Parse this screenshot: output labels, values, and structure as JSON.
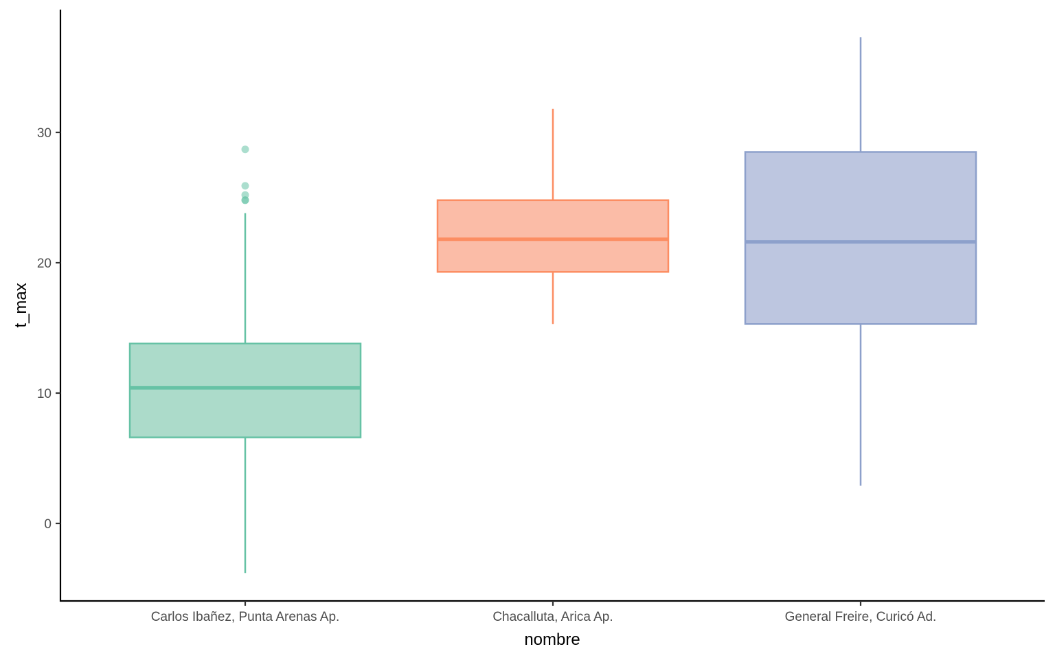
{
  "chart_data": {
    "type": "boxplot",
    "title": "",
    "xlabel": "nombre",
    "ylabel": "t_max",
    "ylim": [
      -5.9,
      39.2
    ],
    "yticks": [
      0,
      10,
      20,
      30
    ],
    "grid": false,
    "legend": "none",
    "categories": [
      "Carlos Ibañez, Punta Arenas Ap.",
      "Chacalluta, Arica Ap.",
      "General Freire, Curicó Ad."
    ],
    "series": [
      {
        "name": "Carlos Ibañez, Punta Arenas Ap.",
        "color": "#66c2a5",
        "fill": "#acdbca",
        "whisker_low": -3.8,
        "q1": 6.6,
        "median": 10.4,
        "q3": 13.8,
        "whisker_high": 23.8,
        "outliers": [
          24.8,
          24.8,
          25.2,
          25.9,
          28.7
        ]
      },
      {
        "name": "Chacalluta, Arica Ap.",
        "color": "#fc8d62",
        "fill": "#fbbca7",
        "whisker_low": 15.3,
        "q1": 19.3,
        "median": 21.8,
        "q3": 24.8,
        "whisker_high": 31.8,
        "outliers": []
      },
      {
        "name": "General Freire, Curicó Ad.",
        "color": "#8da0cb",
        "fill": "#bdc6e0",
        "whisker_low": 2.9,
        "q1": 15.3,
        "median": 21.6,
        "q3": 28.5,
        "whisker_high": 37.3,
        "outliers": []
      }
    ]
  }
}
